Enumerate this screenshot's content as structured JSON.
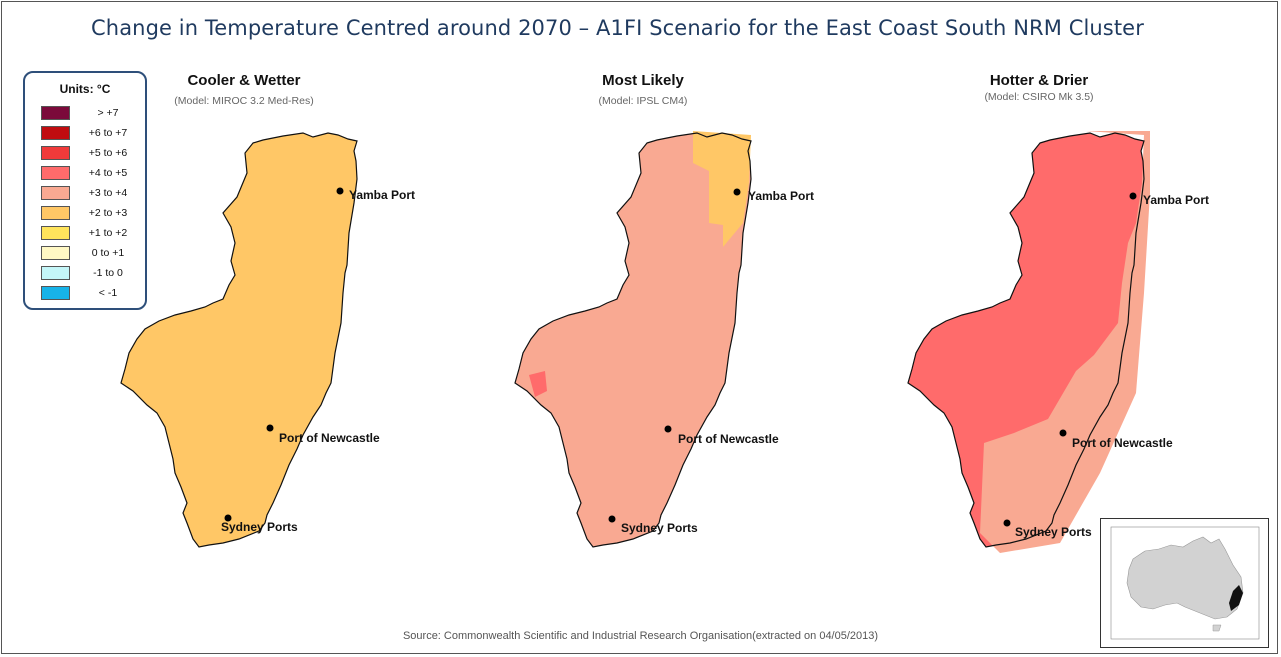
{
  "title": "Change in Temperature Centred around 2070 – A1FI Scenario for the East Coast South NRM Cluster",
  "legend": {
    "title": "Units: °C",
    "items": [
      {
        "label": "> +7",
        "color": "#7b0a3a"
      },
      {
        "label": "+6 to +7",
        "color": "#c00c10"
      },
      {
        "label": "+5 to +6",
        "color": "#f03a3a"
      },
      {
        "label": "+4 to +5",
        "color": "#ff6b6b"
      },
      {
        "label": "+3 to +4",
        "color": "#f9a992"
      },
      {
        "label": "+2 to +3",
        "color": "#ffc766"
      },
      {
        "label": "+1 to +2",
        "color": "#ffe45c"
      },
      {
        "label": "0 to +1",
        "color": "#fff8c4"
      },
      {
        "label": "-1 to 0",
        "color": "#c4f6f8"
      },
      {
        "label": "< -1",
        "color": "#17b3e8"
      }
    ]
  },
  "panels": [
    {
      "title": "Cooler & Wetter",
      "subtitle": "(Model: MIROC 3.2 Med-Res)",
      "main_color": "#ffc766",
      "secondary_color": "#ffc766"
    },
    {
      "title": "Most Likely",
      "subtitle": "(Model: IPSL CM4)",
      "main_color": "#f9a992",
      "secondary_color": "#ffc766"
    },
    {
      "title": "Hotter & Drier",
      "subtitle": "(Model: CSIRO Mk 3.5)",
      "main_color": "#ff6b6b",
      "secondary_color": "#f9a992"
    }
  ],
  "ports": {
    "yamba": "Yamba Port",
    "newcastle": "Port of Newcastle",
    "sydney": "Sydney Ports"
  },
  "source": "Source: Commonwealth Scientific and Industrial Research Organisation(extracted on 04/05/2013)"
}
